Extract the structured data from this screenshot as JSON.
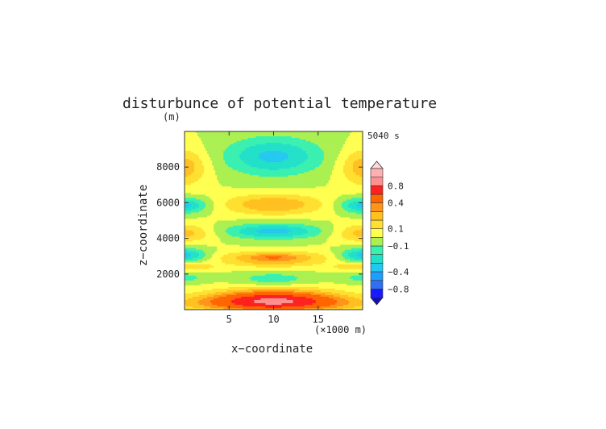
{
  "chart_data": {
    "type": "heatmap",
    "title": "disturbunce of potential temperature",
    "time_label": "5040 s",
    "xlabel": "x−coordinate",
    "ylabel": "z−coordinate",
    "x_unit": "(×1000 m)",
    "y_unit": "(m)",
    "xlim": [
      0,
      20
    ],
    "ylim": [
      0,
      10000
    ],
    "x_ticks": [
      5,
      10,
      15
    ],
    "x_tick_labels": [
      "5",
      "10",
      "15"
    ],
    "y_ticks": [
      2000,
      4000,
      6000,
      8000
    ],
    "y_tick_labels": [
      "2000",
      "4000",
      "6000",
      "8000"
    ],
    "colorbar": {
      "levels": [
        -1.0,
        -0.8,
        -0.6,
        -0.4,
        -0.3,
        -0.2,
        -0.1,
        0,
        0.1,
        0.2,
        0.3,
        0.4,
        0.6,
        0.8,
        1.0
      ],
      "colors": [
        "#1a1aff",
        "#2f6ff5",
        "#1e9fff",
        "#22c8f0",
        "#20e0c8",
        "#38f0b0",
        "#aaf050",
        "#ffff50",
        "#ffe030",
        "#ffc020",
        "#ff9418",
        "#ff6600",
        "#ff2020",
        "#ff9090",
        "#ffb0b0"
      ],
      "under_color": "#1010b8",
      "over_color": "#ffd8d8",
      "tick_values": [
        0.8,
        0.4,
        0.1,
        -0.1,
        -0.4,
        -0.8
      ],
      "tick_labels": [
        "0.8",
        "0.4",
        "0.1",
        "−0.1",
        "−0.4",
        "−0.8"
      ]
    },
    "features": [
      {
        "x": 10,
        "z": 550,
        "sx": 7,
        "sz": 600,
        "value": 0.62
      },
      {
        "x": 10,
        "z": 350,
        "sx": 12,
        "sz": 450,
        "value": 0.28
      },
      {
        "x": 10,
        "z": 1700,
        "sx": 4.2,
        "sz": 380,
        "value": -0.17
      },
      {
        "x": 0,
        "z": 1800,
        "sx": 2.5,
        "sz": 320,
        "value": -0.14
      },
      {
        "x": 20,
        "z": 1800,
        "sx": 2.5,
        "sz": 320,
        "value": -0.14
      },
      {
        "x": 0,
        "z": 2400,
        "sx": 3.8,
        "sz": 260,
        "value": 0.18
      },
      {
        "x": 20,
        "z": 2400,
        "sx": 3.8,
        "sz": 260,
        "value": 0.18
      },
      {
        "x": 10,
        "z": 2600,
        "sx": 4.5,
        "sz": 280,
        "value": 0.16
      },
      {
        "x": 10,
        "z": 2950,
        "sx": 6.5,
        "sz": 340,
        "value": 0.27
      },
      {
        "x": 10,
        "z": 2950,
        "sx": 2.5,
        "sz": 160,
        "value": 0.12
      },
      {
        "x": 0,
        "z": 3050,
        "sx": 2.6,
        "sz": 380,
        "value": -0.36
      },
      {
        "x": 20,
        "z": 3050,
        "sx": 2.6,
        "sz": 380,
        "value": -0.36
      },
      {
        "x": 0,
        "z": 4300,
        "sx": 3.2,
        "sz": 500,
        "value": 0.25
      },
      {
        "x": 20,
        "z": 4300,
        "sx": 3.2,
        "sz": 500,
        "value": 0.25
      },
      {
        "x": 10,
        "z": 4400,
        "sx": 5.5,
        "sz": 430,
        "value": -0.34
      },
      {
        "x": 0,
        "z": 5850,
        "sx": 2.6,
        "sz": 430,
        "value": -0.34
      },
      {
        "x": 20,
        "z": 5850,
        "sx": 2.6,
        "sz": 430,
        "value": -0.34
      },
      {
        "x": 10,
        "z": 5900,
        "sx": 5.5,
        "sz": 580,
        "value": 0.3
      },
      {
        "x": 0,
        "z": 8000,
        "sx": 2.5,
        "sz": 1000,
        "value": 0.27
      },
      {
        "x": 20,
        "z": 8000,
        "sx": 2.5,
        "sz": 1000,
        "value": 0.27
      },
      {
        "x": 10,
        "z": 8600,
        "sx": 5.4,
        "sz": 1050,
        "value": -0.33
      }
    ]
  }
}
